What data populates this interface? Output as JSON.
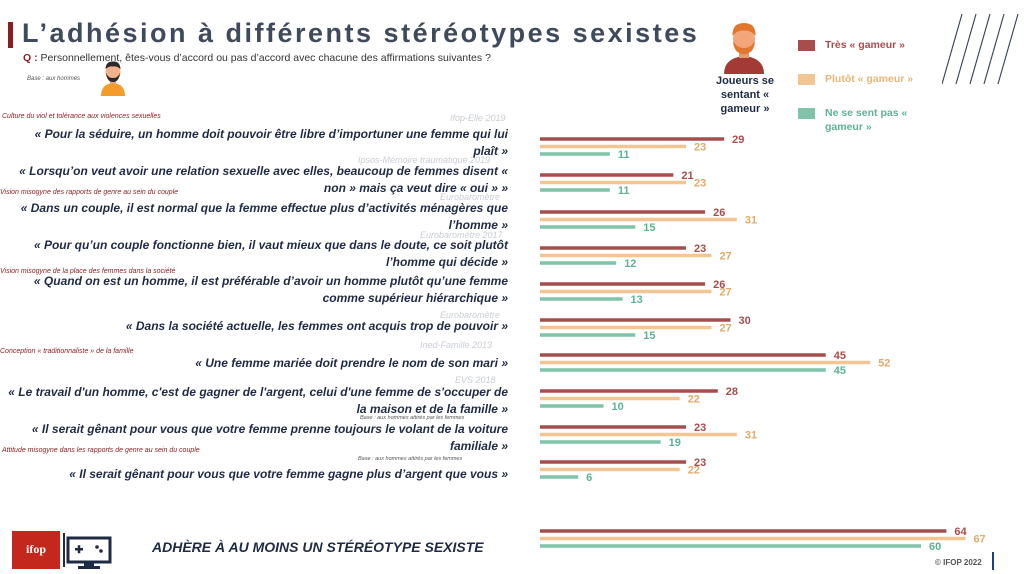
{
  "header": {
    "title": "L’adhésion à différents stéréotypes sexistes",
    "question_prefix": "Q :",
    "question": "Personnellement, êtes-vous d’accord ou pas d’accord avec chacune des affirmations suivantes ?",
    "base": "Base : aux hommes",
    "respondent_label": "Joueurs se sentant « gameur »"
  },
  "colors": {
    "series_1": "#a84d4d",
    "series_2": "#f2c693",
    "series_3": "#7fc3a9",
    "accent": "#8a1d1d",
    "text": "#1f2a44"
  },
  "legend": [
    {
      "label": "Très « gameur »"
    },
    {
      "label": "Plutôt « gameur »"
    },
    {
      "label": "Ne se sent pas « gameur »"
    }
  ],
  "sections": [
    {
      "label": "Culture du viol et tolérance aux violences sexuelles"
    },
    {
      "label": "Vision misogyne des rapports de genre au sein du couple"
    },
    {
      "label": "Vision misogyne de la place des femmes dans la société"
    },
    {
      "label": "Conception « traditionnaliste » de la famille"
    },
    {
      "label": "Attitude misogyne dans les rapports de genre au sein du couple"
    }
  ],
  "sources": [
    {
      "label": "Ifop-Elle 2019"
    },
    {
      "label": "Ipsos-Mémoire traumatique 2019"
    },
    {
      "label": "Eurobaromètre"
    },
    {
      "label": "Eurobaromètre 2017"
    },
    {
      "label": "Eurobaromètre"
    },
    {
      "label": "Ined-Famille 2013"
    },
    {
      "label": "EVS 2018"
    }
  ],
  "bases": [
    {
      "label": "Base : aux hommes attirés par les femmes"
    },
    {
      "label": "Base : aux hommes attirés par les femmes"
    }
  ],
  "summary": {
    "label": "ADHÈRE À AU MOINS UN STÉRÉOTYPE SEXISTE"
  },
  "footer": {
    "logo_text": "ifop",
    "copyright": "© IFOP 2022"
  },
  "chart_data": {
    "type": "bar",
    "orientation": "horizontal",
    "xlim": [
      0,
      70
    ],
    "grid": false,
    "legend_position": "top-right",
    "categories": [
      "« Pour la séduire, un homme doit pouvoir être libre d’importuner une femme qui lui plaît »",
      "« Lorsqu’on veut avoir une relation sexuelle avec elles, beaucoup de femmes disent « non » mais ça veut dire « oui » »",
      "« Dans un couple, il est normal que la femme effectue plus d’activités ménagères que l’homme »",
      "« Pour qu’un couple fonctionne bien, il vaut mieux que dans le doute, ce soit plutôt l’homme qui décide »",
      "« Quand on est un homme, il est préférable d’avoir un homme plutôt qu’une femme comme supérieur hiérarchique »",
      "« Dans la société actuelle, les femmes ont acquis trop de pouvoir »",
      "« Une femme mariée doit prendre le nom de son mari »",
      "« Le travail d'un homme, c'est de gagner de l'argent, celui d'une femme de s'occuper de la maison et de la famille »",
      "« Il serait gênant pour vous que votre femme prenne toujours le volant de la voiture familiale »",
      "« Il serait gênant pour vous que votre femme gagne plus d’argent que vous »"
    ],
    "series": [
      {
        "name": "Très « gameur »",
        "values": [
          29,
          21,
          26,
          23,
          26,
          30,
          45,
          28,
          23,
          23
        ]
      },
      {
        "name": "Plutôt « gameur »",
        "values": [
          23,
          23,
          31,
          27,
          27,
          27,
          52,
          22,
          31,
          22
        ]
      },
      {
        "name": "Ne se sent pas « gameur »",
        "values": [
          11,
          11,
          15,
          12,
          13,
          15,
          45,
          10,
          19,
          6
        ]
      }
    ],
    "summary": {
      "category": "ADHÈRE À AU MOINS UN STÉRÉOTYPE SEXISTE",
      "values": [
        64,
        67,
        60
      ]
    }
  }
}
